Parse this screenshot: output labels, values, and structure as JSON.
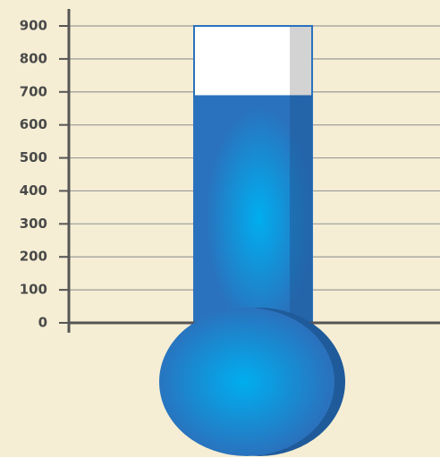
{
  "chart_data": {
    "type": "thermometer",
    "value": 690,
    "color": "#2a72bd",
    "ylim": [
      0,
      900
    ],
    "yticks": [
      0,
      100,
      200,
      300,
      400,
      500,
      600,
      700,
      800,
      900
    ],
    "grid": true
  }
}
